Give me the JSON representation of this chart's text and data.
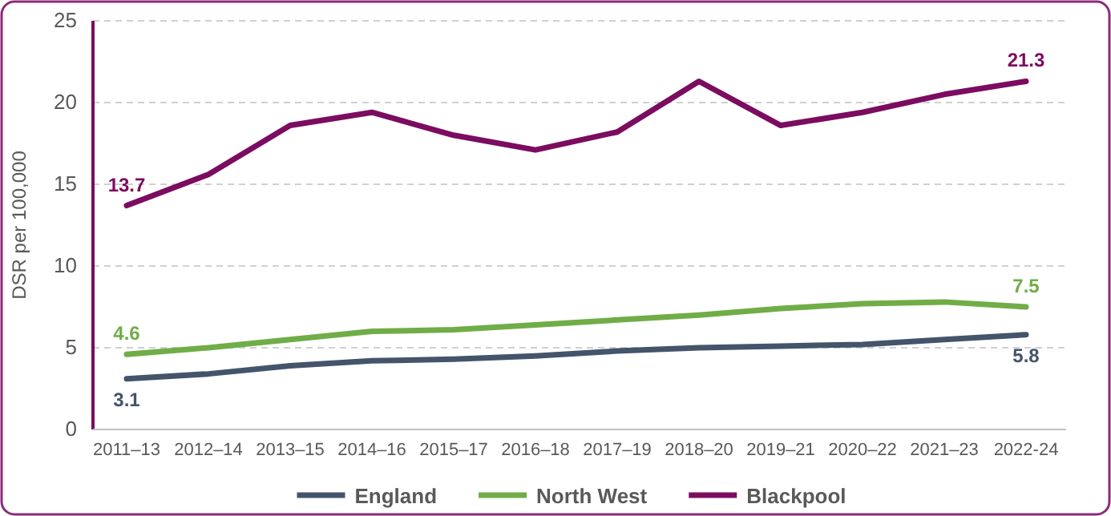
{
  "chart_data": {
    "type": "line",
    "ylabel": "DSR per 100,000",
    "categories": [
      "2011–13",
      "2012–14",
      "2013–15",
      "2014–16",
      "2015–17",
      "2016–18",
      "2017–19",
      "2018–20",
      "2019–21",
      "2020–22",
      "2021–23",
      "2022-24"
    ],
    "ylim": [
      0,
      25
    ],
    "yticks": [
      0,
      5,
      10,
      15,
      20,
      25
    ],
    "grid": "y",
    "legend": "bottom",
    "marker": "none",
    "line_style": "solid",
    "series": [
      {
        "name": "England",
        "color": "#44546a",
        "values": [
          3.1,
          3.4,
          3.9,
          4.2,
          4.3,
          4.5,
          4.8,
          5.0,
          5.1,
          5.2,
          5.5,
          5.8
        ],
        "value_labels": [
          "3.1",
          null,
          null,
          null,
          null,
          null,
          null,
          null,
          null,
          null,
          null,
          "5.8"
        ]
      },
      {
        "name": "North West",
        "color": "#70ad47",
        "values": [
          4.6,
          5.0,
          5.5,
          6.0,
          6.1,
          6.4,
          6.7,
          7.0,
          7.4,
          7.7,
          7.8,
          7.5
        ],
        "value_labels": [
          "4.6",
          null,
          null,
          null,
          null,
          null,
          null,
          null,
          null,
          null,
          null,
          "7.5"
        ]
      },
      {
        "name": "Blackpool",
        "color": "#7b0c60",
        "values": [
          13.7,
          15.6,
          18.6,
          19.4,
          18.0,
          17.1,
          18.2,
          21.3,
          18.6,
          19.4,
          20.5,
          21.3
        ],
        "value_labels": [
          "13.7",
          null,
          null,
          null,
          null,
          null,
          null,
          null,
          null,
          null,
          null,
          "21.3"
        ]
      }
    ]
  }
}
